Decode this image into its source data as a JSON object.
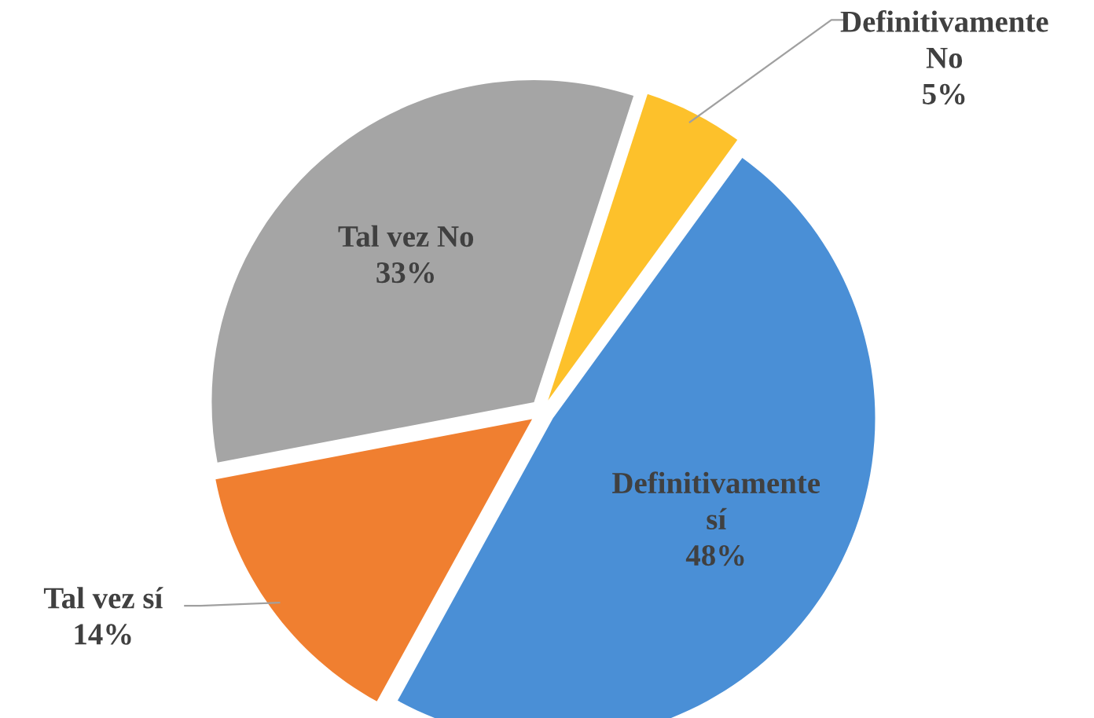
{
  "chart_data": {
    "type": "pie",
    "categories": [
      "Definitivamente\nNo",
      "Definitivamente\nsí",
      "Tal vez sí",
      "Tal vez No"
    ],
    "values": [
      5,
      48,
      14,
      33
    ],
    "value_labels": [
      "5%",
      "48%",
      "14%",
      "33%"
    ],
    "colors": [
      "#fdc12b",
      "#4a8fd6",
      "#f07f30",
      "#a5a5a5"
    ]
  }
}
